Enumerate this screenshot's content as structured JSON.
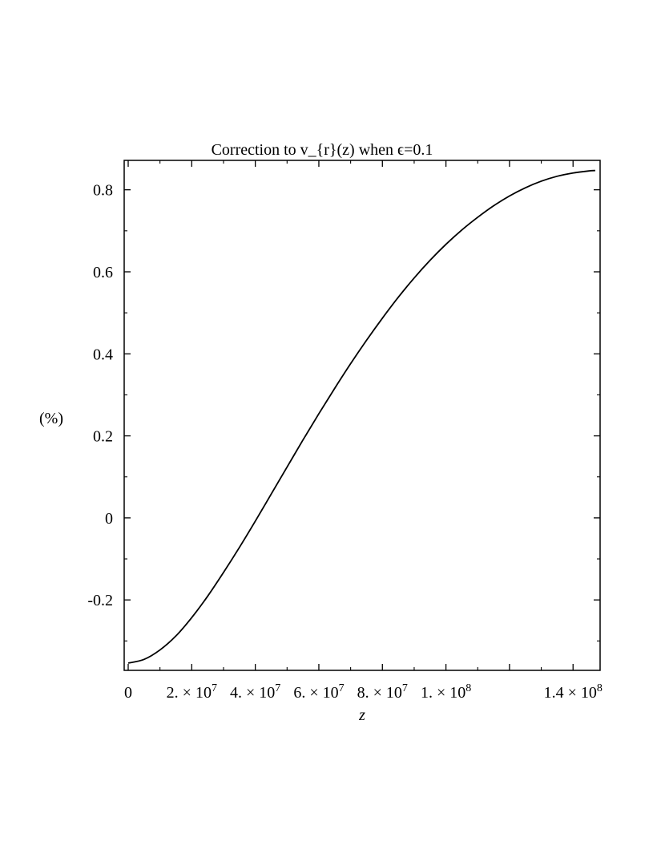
{
  "chart_data": {
    "type": "line",
    "title": "Correction to v_{r}(z) when ϵ=0.1",
    "xlabel": "z",
    "ylabel": "(%)",
    "xlim": [
      0,
      147000000
    ],
    "ylim": [
      -0.36,
      0.86
    ],
    "x_ticks": [
      {
        "value": 0,
        "label": "0"
      },
      {
        "value": 20000000,
        "label": "2. × 10",
        "exp": "7"
      },
      {
        "value": 40000000,
        "label": "4. × 10",
        "exp": "7"
      },
      {
        "value": 60000000,
        "label": "6. × 10",
        "exp": "7"
      },
      {
        "value": 80000000,
        "label": "8. × 10",
        "exp": "7"
      },
      {
        "value": 100000000,
        "label": "1. × 10",
        "exp": "8"
      },
      {
        "value": 140000000,
        "label": "1.4 × 10",
        "exp": "8"
      }
    ],
    "y_ticks": [
      {
        "value": -0.2,
        "label": "-0.2"
      },
      {
        "value": 0,
        "label": "0"
      },
      {
        "value": 0.2,
        "label": "0.2"
      },
      {
        "value": 0.4,
        "label": "0.4"
      },
      {
        "value": 0.6,
        "label": "0.6"
      },
      {
        "value": 0.8,
        "label": "0.8"
      }
    ],
    "grid": false,
    "legend": "none",
    "series": [
      {
        "color": "#000000",
        "x": [
          0,
          5000000,
          10000000,
          15000000,
          20000000,
          25000000,
          30000000,
          35000000,
          40000000,
          45000000,
          50000000,
          55000000,
          60000000,
          65000000,
          70000000,
          75000000,
          80000000,
          85000000,
          90000000,
          95000000,
          100000000,
          105000000,
          110000000,
          115000000,
          120000000,
          125000000,
          130000000,
          135000000,
          140000000,
          145000000,
          147000000
        ],
        "y": [
          -0.354,
          -0.345,
          -0.322,
          -0.288,
          -0.243,
          -0.191,
          -0.133,
          -0.072,
          -0.008,
          0.058,
          0.124,
          0.19,
          0.254,
          0.316,
          0.376,
          0.433,
          0.487,
          0.538,
          0.585,
          0.628,
          0.667,
          0.702,
          0.733,
          0.761,
          0.785,
          0.805,
          0.821,
          0.833,
          0.841,
          0.846,
          0.847
        ]
      }
    ]
  }
}
